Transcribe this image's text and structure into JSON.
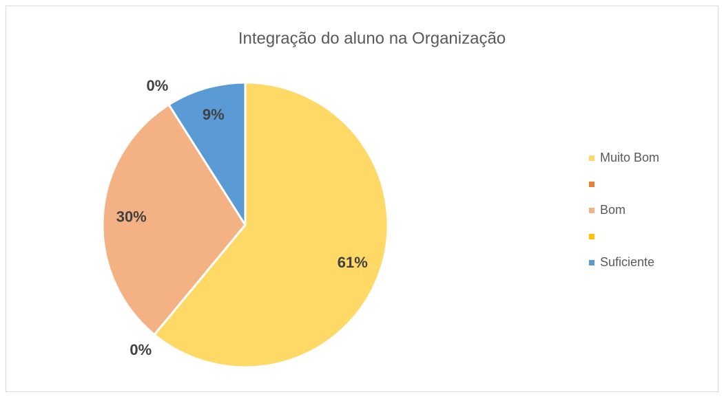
{
  "chart_data": {
    "type": "pie",
    "title": "Integração do aluno na Organização",
    "categories": [
      "Muito Bom",
      null,
      "Bom",
      null,
      "Suficiente"
    ],
    "values": [
      61,
      0,
      30,
      0,
      9
    ],
    "value_labels": [
      "61%",
      "0%",
      "30%",
      "0%",
      "9%"
    ],
    "colors": [
      "#ffd966",
      "#ed7d31",
      "#f4b183",
      "#ffc000",
      "#5b9bd5"
    ],
    "legend": "right"
  }
}
